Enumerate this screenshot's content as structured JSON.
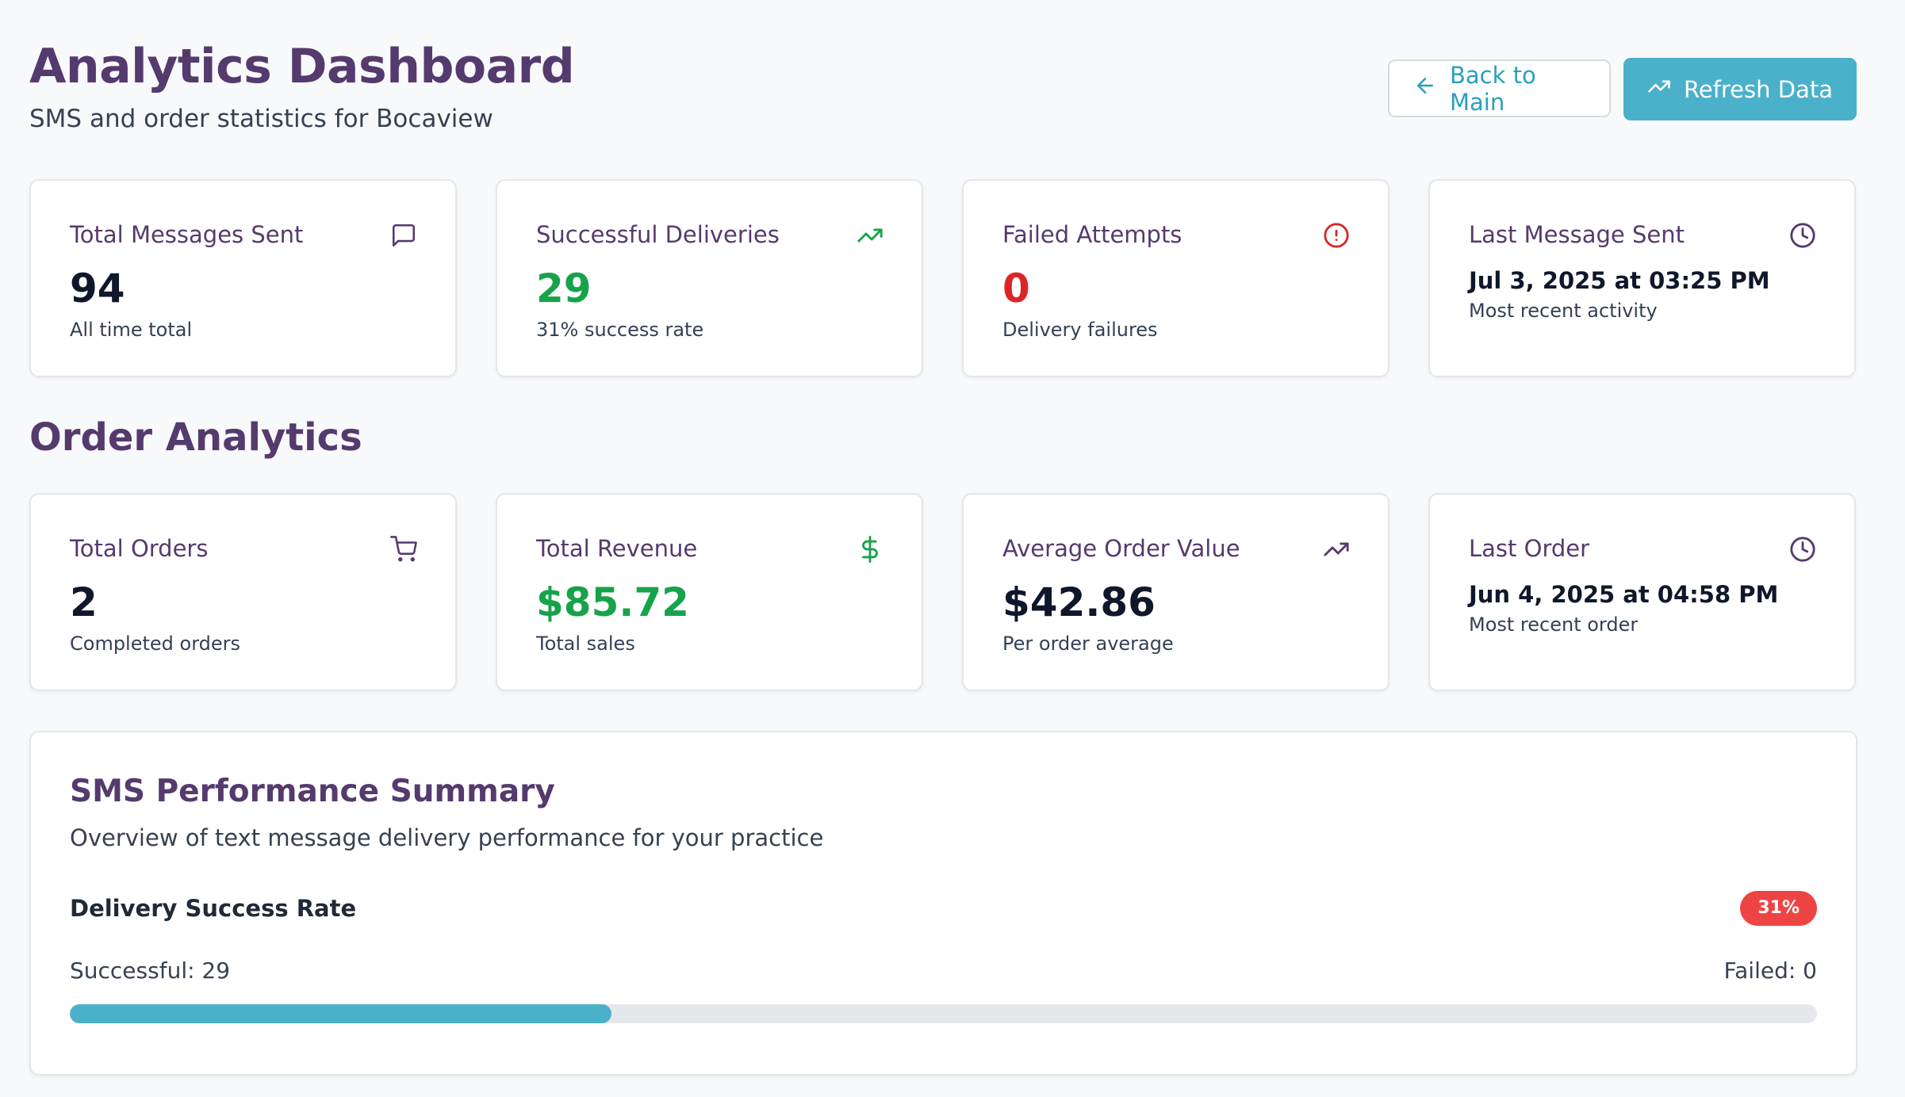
{
  "header": {
    "title": "Analytics Dashboard",
    "subtitle": "SMS and order statistics for Bocaview",
    "back_label": "Back to Main",
    "refresh_label": "Refresh Data"
  },
  "sms_cards": [
    {
      "label": "Total Messages Sent",
      "value": "94",
      "sub": "All time total",
      "icon": "message-square-icon"
    },
    {
      "label": "Successful Deliveries",
      "value": "29",
      "sub": "31% success rate",
      "icon": "trending-up-icon"
    },
    {
      "label": "Failed Attempts",
      "value": "0",
      "sub": "Delivery failures",
      "icon": "alert-circle-icon"
    },
    {
      "label": "Last Message Sent",
      "value": "Jul 3, 2025 at 03:25 PM",
      "sub": "Most recent activity",
      "icon": "clock-icon"
    }
  ],
  "order_section_title": "Order Analytics",
  "order_cards": [
    {
      "label": "Total Orders",
      "value": "2",
      "sub": "Completed orders",
      "icon": "shopping-cart-icon"
    },
    {
      "label": "Total Revenue",
      "value": "$85.72",
      "sub": "Total sales",
      "icon": "dollar-sign-icon"
    },
    {
      "label": "Average Order Value",
      "value": "$42.86",
      "sub": "Per order average",
      "icon": "trending-up-icon"
    },
    {
      "label": "Last Order",
      "value": "Jun 4, 2025 at 04:58 PM",
      "sub": "Most recent order",
      "icon": "clock-icon"
    }
  ],
  "summary": {
    "title": "SMS Performance Summary",
    "description": "Overview of text message delivery performance for your practice",
    "rate_label": "Delivery Success Rate",
    "rate_badge": "31%",
    "successful_text": "Successful: 29",
    "failed_text": "Failed: 0",
    "progress_fraction": 0.31
  },
  "colors": {
    "accent": "#4bb1cb",
    "title_purple": "#553a6e",
    "success_green": "#16a34a",
    "error_red": "#dc2626",
    "badge_red": "#ef4444"
  }
}
